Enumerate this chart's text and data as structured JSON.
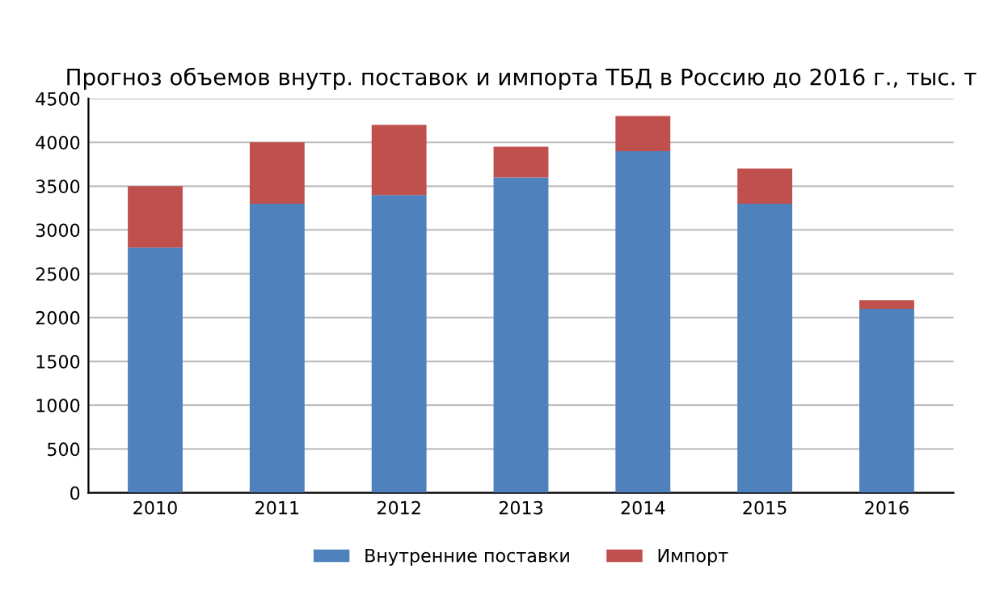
{
  "chart_data": {
    "type": "bar",
    "stacked": true,
    "title": "Прогноз объемов внутр. поставок и импорта ТБД в Россию до 2016 г., тыс. т",
    "categories": [
      "2010",
      "2011",
      "2012",
      "2013",
      "2014",
      "2015",
      "2016"
    ],
    "series": [
      {
        "name": "Внутренние поставки",
        "color": "#4f81bd",
        "values": [
          2800,
          3300,
          3400,
          3600,
          3900,
          3300,
          2100
        ]
      },
      {
        "name": "Импорт",
        "color": "#c0504d",
        "values": [
          700,
          700,
          800,
          350,
          400,
          400,
          100
        ]
      }
    ],
    "ylim": [
      0,
      4500
    ],
    "yticks": [
      0,
      500,
      1000,
      1500,
      2000,
      2500,
      3000,
      3500,
      4000,
      4500
    ],
    "grid": "y",
    "legend": "bottom"
  }
}
